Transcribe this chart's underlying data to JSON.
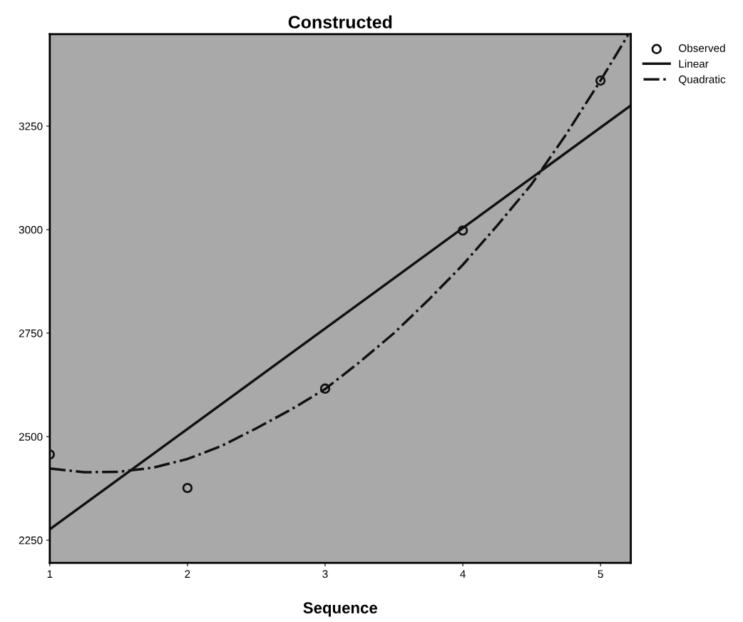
{
  "chart_data": {
    "type": "scatter",
    "title": "Constructed",
    "xlabel": "Sequence",
    "xlim": [
      1,
      5.22
    ],
    "xticks": [
      1,
      2,
      3,
      4,
      5
    ],
    "ylim": [
      2195,
      3472
    ],
    "yticks": [
      2250,
      2500,
      2750,
      3000,
      3250
    ],
    "grid": false,
    "legend": "top right",
    "series": [
      {
        "name": "Observed",
        "marker": "circle",
        "color": "#111111",
        "x": [
          1,
          2,
          3,
          4,
          5
        ],
        "values": [
          2457,
          2376,
          2616,
          2998,
          3360
        ]
      },
      {
        "name": "Linear",
        "type": "line",
        "line_style": "solid",
        "color": "#111111",
        "x": [
          1,
          5.22
        ],
        "values": [
          2276,
          3300
        ]
      },
      {
        "name": "Quadratic",
        "type": "line",
        "line_style": "dashdot",
        "color": "#111111",
        "x": [
          1,
          1.25,
          1.5,
          1.75,
          2,
          2.25,
          2.5,
          2.75,
          3,
          3.25,
          3.5,
          3.75,
          4,
          4.25,
          4.5,
          4.75,
          5,
          5.2
        ],
        "values": [
          2423,
          2414,
          2415,
          2425,
          2446,
          2478,
          2520,
          2565,
          2615,
          2680,
          2750,
          2830,
          2915,
          3010,
          3110,
          3230,
          3360,
          3470
        ]
      }
    ]
  }
}
